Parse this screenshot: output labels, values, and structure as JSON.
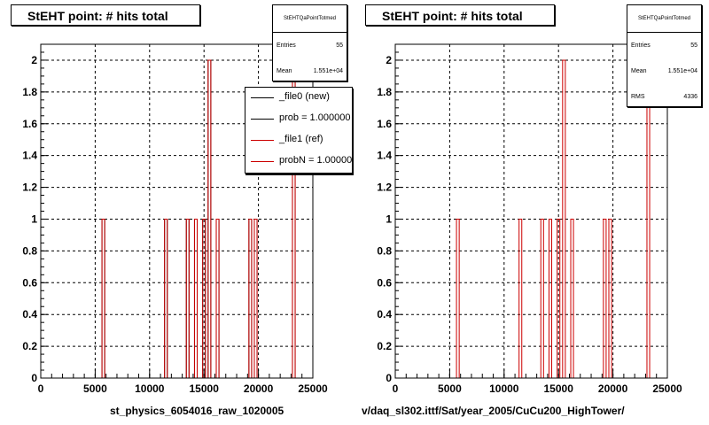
{
  "chart_data": [
    {
      "type": "bar",
      "title": "StEHT point: # hits total",
      "xlabel": "st_physics_6054016_raw_1020005",
      "ylabel": "",
      "xlim": [
        0,
        25000
      ],
      "ylim": [
        0,
        2.1
      ],
      "xticks": [
        "0",
        "5000",
        "10000",
        "15000",
        "20000",
        "25000"
      ],
      "yticks": [
        "0",
        "0.2",
        "0.4",
        "0.6",
        "0.8",
        "1",
        "1.2",
        "1.4",
        "1.6",
        "1.8",
        "2"
      ],
      "grid": true,
      "bin_width": 250,
      "series": [
        {
          "name": "_file0 (new)",
          "color": "#000000",
          "x": [
            5750,
            11500,
            13500,
            14250,
            15000,
            15500,
            16250,
            19250,
            19750,
            23250
          ],
          "values": [
            1,
            1,
            1,
            1,
            1,
            2,
            1,
            1,
            1,
            2
          ]
        },
        {
          "name": "_file1 (ref)",
          "color": "#cc0000",
          "x": [
            5750,
            11500,
            13500,
            14250,
            15000,
            15500,
            16250,
            19250,
            19750,
            23250
          ],
          "values": [
            1,
            1,
            1,
            1,
            1,
            2,
            1,
            1,
            1,
            2
          ]
        }
      ],
      "legend": [
        "_file0 (new)",
        "prob = 1.000000",
        "_file1 (ref)",
        "probN = 1.000000"
      ],
      "stats": {
        "name": "StEHTQaPointTotmed",
        "entries_label": "Entries",
        "entries": "55",
        "mean_label": "Mean",
        "mean": "1.551e+04"
      }
    },
    {
      "type": "bar",
      "title": "StEHT point: # hits total",
      "xlabel": "v/daq_sl302.ittf/Sat/year_2005/CuCu200_HighTower/",
      "ylabel": "",
      "xlim": [
        0,
        25000
      ],
      "ylim": [
        0,
        2.1
      ],
      "xticks": [
        "0",
        "5000",
        "10000",
        "15000",
        "20000",
        "25000"
      ],
      "yticks": [
        "0",
        "0.2",
        "0.4",
        "0.6",
        "0.8",
        "1",
        "1.2",
        "1.4",
        "1.6",
        "1.8",
        "2"
      ],
      "grid": true,
      "bin_width": 250,
      "series": [
        {
          "name": "",
          "color": "#cc0000",
          "x": [
            5750,
            11500,
            13500,
            14250,
            15000,
            15500,
            16250,
            19250,
            19750,
            23250
          ],
          "values": [
            1,
            1,
            1,
            1,
            1,
            2,
            1,
            1,
            1,
            2
          ]
        }
      ],
      "stats": {
        "name": "StEHTQaPointTotmed",
        "entries_label": "Entries",
        "entries": "55",
        "mean_label": "Mean",
        "mean": "1.551e+04",
        "rms_label": "RMS",
        "rms": "4336"
      }
    }
  ],
  "colors": {
    "new": "#000000",
    "ref": "#cc0000",
    "grid": "#000000"
  }
}
